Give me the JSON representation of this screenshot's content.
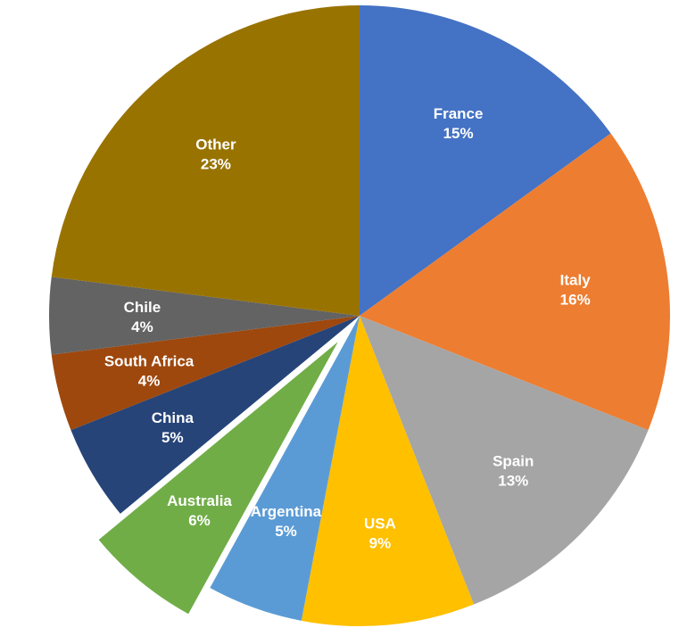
{
  "chart_data": {
    "type": "pie",
    "title": "",
    "labels": [
      "France",
      "Italy",
      "Spain",
      "USA",
      "Argentina",
      "Australia",
      "China",
      "South Africa",
      "Chile",
      "Other"
    ],
    "values": [
      15,
      16,
      13,
      9,
      5,
      6,
      5,
      4,
      4,
      23
    ],
    "value_labels": [
      "15%",
      "16%",
      "13%",
      "9%",
      "5%",
      "6%",
      "5%",
      "4%",
      "4%",
      "23%"
    ],
    "colors": [
      "#4472C4",
      "#ED7D31",
      "#A5A5A5",
      "#FFC000",
      "#5B9BD5",
      "#70AD47",
      "#264478",
      "#9E480E",
      "#636363",
      "#997300"
    ],
    "exploded": [
      "Australia"
    ],
    "legend": "none",
    "start_angle": "12 o'clock, clockwise"
  }
}
